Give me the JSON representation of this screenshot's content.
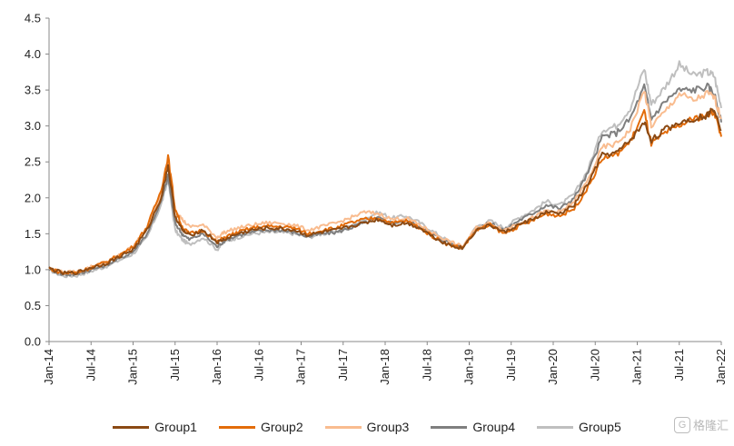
{
  "chart_data": {
    "type": "line",
    "title": "",
    "xlabel": "",
    "ylabel": "",
    "ylim": [
      0,
      4.5
    ],
    "yticks": [
      "0.0",
      "0.5",
      "1.0",
      "1.5",
      "2.0",
      "2.5",
      "3.0",
      "3.5",
      "4.0",
      "4.5"
    ],
    "xticks": [
      "Jan-14",
      "Jul-14",
      "Jan-15",
      "Jul-15",
      "Jan-16",
      "Jul-16",
      "Jan-17",
      "Jul-17",
      "Jan-18",
      "Jul-18",
      "Jan-19",
      "Jul-19",
      "Jan-20",
      "Jul-20",
      "Jan-21",
      "Jul-21",
      "Jan-22"
    ],
    "x": [
      "2014-01",
      "2014-03",
      "2014-05",
      "2014-07",
      "2014-09",
      "2014-11",
      "2015-01",
      "2015-03",
      "2015-05",
      "2015-06",
      "2015-07",
      "2015-08",
      "2015-09",
      "2015-11",
      "2016-01",
      "2016-02",
      "2016-04",
      "2016-06",
      "2016-08",
      "2016-10",
      "2016-12",
      "2017-02",
      "2017-04",
      "2017-06",
      "2017-08",
      "2017-10",
      "2017-12",
      "2018-02",
      "2018-04",
      "2018-06",
      "2018-08",
      "2018-10",
      "2018-12",
      "2019-02",
      "2019-04",
      "2019-06",
      "2019-08",
      "2019-10",
      "2019-12",
      "2020-02",
      "2020-04",
      "2020-06",
      "2020-08",
      "2020-10",
      "2020-12",
      "2021-02",
      "2021-03",
      "2021-05",
      "2021-07",
      "2021-09",
      "2021-11",
      "2021-12",
      "2022-01"
    ],
    "series": [
      {
        "name": "Group1",
        "color": "#8B4A14",
        "values": [
          1.02,
          0.95,
          0.96,
          1.03,
          1.08,
          1.18,
          1.28,
          1.55,
          2.0,
          2.45,
          1.75,
          1.55,
          1.48,
          1.55,
          1.38,
          1.42,
          1.5,
          1.55,
          1.58,
          1.57,
          1.55,
          1.48,
          1.52,
          1.55,
          1.6,
          1.65,
          1.7,
          1.62,
          1.65,
          1.58,
          1.45,
          1.35,
          1.3,
          1.55,
          1.62,
          1.52,
          1.62,
          1.7,
          1.8,
          1.78,
          1.9,
          2.2,
          2.6,
          2.62,
          2.8,
          3.05,
          2.8,
          2.95,
          3.05,
          3.1,
          3.15,
          3.25,
          2.95
        ]
      },
      {
        "name": "Group2",
        "color": "#E36C0A",
        "values": [
          1.02,
          0.95,
          0.96,
          1.03,
          1.1,
          1.2,
          1.32,
          1.6,
          2.1,
          2.58,
          1.85,
          1.6,
          1.5,
          1.55,
          1.38,
          1.45,
          1.52,
          1.58,
          1.6,
          1.6,
          1.58,
          1.5,
          1.55,
          1.58,
          1.65,
          1.7,
          1.72,
          1.65,
          1.68,
          1.58,
          1.45,
          1.35,
          1.3,
          1.55,
          1.62,
          1.5,
          1.6,
          1.68,
          1.78,
          1.75,
          1.85,
          2.15,
          2.55,
          2.6,
          2.78,
          3.2,
          2.75,
          2.9,
          3.0,
          3.1,
          3.15,
          3.2,
          2.85
        ]
      },
      {
        "name": "Group3",
        "color": "#F9BC8F",
        "values": [
          1.02,
          0.96,
          0.97,
          1.04,
          1.1,
          1.2,
          1.32,
          1.58,
          2.05,
          2.5,
          1.85,
          1.7,
          1.6,
          1.62,
          1.45,
          1.52,
          1.58,
          1.62,
          1.65,
          1.65,
          1.62,
          1.55,
          1.6,
          1.65,
          1.72,
          1.8,
          1.78,
          1.7,
          1.72,
          1.62,
          1.5,
          1.4,
          1.32,
          1.58,
          1.65,
          1.55,
          1.65,
          1.72,
          1.82,
          1.8,
          1.95,
          2.25,
          2.7,
          2.75,
          2.95,
          3.5,
          3.0,
          3.2,
          3.45,
          3.35,
          3.45,
          3.4,
          3.1
        ]
      },
      {
        "name": "Group4",
        "color": "#7F7F7F",
        "values": [
          1.01,
          0.93,
          0.94,
          1.0,
          1.06,
          1.15,
          1.25,
          1.5,
          1.95,
          2.3,
          1.65,
          1.5,
          1.42,
          1.5,
          1.32,
          1.4,
          1.48,
          1.52,
          1.55,
          1.55,
          1.52,
          1.46,
          1.5,
          1.52,
          1.58,
          1.65,
          1.72,
          1.65,
          1.68,
          1.6,
          1.48,
          1.38,
          1.3,
          1.58,
          1.65,
          1.55,
          1.68,
          1.78,
          1.9,
          1.85,
          2.0,
          2.35,
          2.85,
          2.9,
          3.1,
          3.55,
          3.1,
          3.35,
          3.5,
          3.5,
          3.55,
          3.45,
          3.05
        ]
      },
      {
        "name": "Group5",
        "color": "#BFBFBF",
        "values": [
          1.0,
          0.91,
          0.92,
          0.98,
          1.04,
          1.13,
          1.22,
          1.45,
          1.9,
          2.25,
          1.55,
          1.42,
          1.35,
          1.45,
          1.28,
          1.38,
          1.45,
          1.5,
          1.52,
          1.52,
          1.5,
          1.45,
          1.5,
          1.52,
          1.6,
          1.7,
          1.8,
          1.72,
          1.75,
          1.65,
          1.52,
          1.4,
          1.3,
          1.6,
          1.68,
          1.58,
          1.72,
          1.82,
          1.95,
          1.9,
          2.05,
          2.4,
          2.95,
          3.0,
          3.25,
          3.8,
          3.3,
          3.55,
          3.85,
          3.7,
          3.75,
          3.7,
          3.25
        ]
      }
    ],
    "legend": "bottom",
    "grid": false
  },
  "watermark": {
    "icon": "G",
    "text": "格隆汇"
  }
}
